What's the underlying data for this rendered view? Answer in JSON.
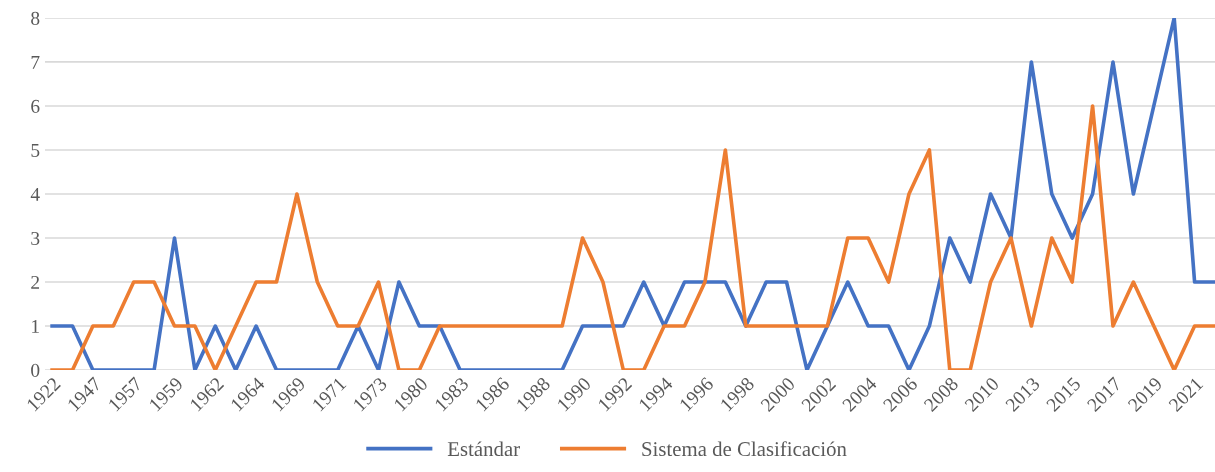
{
  "chart_data": {
    "type": "line",
    "categories": [
      "1922",
      null,
      "1947",
      null,
      "1957",
      null,
      "1959",
      null,
      "1962",
      null,
      "1964",
      null,
      "1969",
      null,
      "1971",
      null,
      "1973",
      null,
      "1980",
      null,
      "1983",
      null,
      "1986",
      null,
      "1988",
      null,
      "1990",
      null,
      "1992",
      null,
      "1994",
      null,
      "1996",
      null,
      "1998",
      null,
      "2000",
      null,
      "2002",
      null,
      "2004",
      null,
      "2006",
      null,
      "2008",
      null,
      "2010",
      null,
      "2013",
      null,
      "2015",
      null,
      "2017",
      null,
      "2019",
      null,
      "2021",
      null
    ],
    "series": [
      {
        "name": "Estándar",
        "color": "#4472c4",
        "values": [
          1,
          1,
          0,
          0,
          0,
          0,
          3,
          0,
          1,
          0,
          1,
          0,
          0,
          0,
          0,
          1,
          0,
          2,
          1,
          1,
          0,
          0,
          0,
          0,
          0,
          0,
          1,
          1,
          1,
          2,
          1,
          2,
          2,
          2,
          1,
          2,
          2,
          0,
          1,
          2,
          1,
          1,
          0,
          1,
          3,
          2,
          4,
          3,
          7,
          4,
          3,
          4,
          7,
          4,
          6,
          8,
          2,
          2
        ]
      },
      {
        "name": "Sistema de Clasificación",
        "color": "#ed7d31",
        "values": [
          0,
          0,
          1,
          1,
          2,
          2,
          1,
          1,
          0,
          1,
          2,
          2,
          4,
          2,
          1,
          1,
          2,
          0,
          0,
          1,
          1,
          1,
          1,
          1,
          1,
          1,
          3,
          2,
          0,
          0,
          1,
          1,
          2,
          5,
          1,
          1,
          1,
          1,
          1,
          3,
          3,
          2,
          4,
          5,
          0,
          0,
          2,
          3,
          1,
          3,
          2,
          6,
          1,
          2,
          1,
          0,
          1,
          1
        ]
      }
    ],
    "ylim": [
      0,
      8
    ],
    "yticks": [
      0,
      1,
      2,
      3,
      4,
      5,
      6,
      7,
      8
    ],
    "grid": "y",
    "legend": "bottom",
    "line_style": "solid",
    "marker": "none"
  }
}
